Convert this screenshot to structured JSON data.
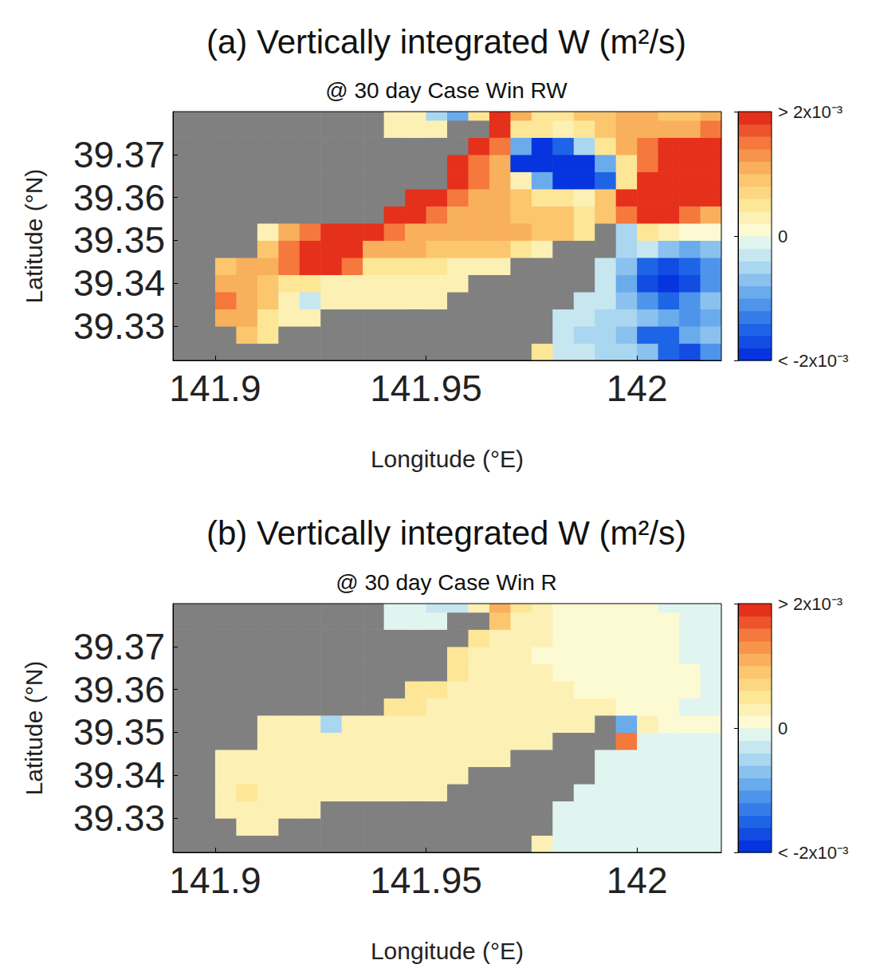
{
  "chart_data": [
    {
      "type": "heatmap",
      "title": "(a) Vertically integrated W (m²/s)",
      "subtitle": "@ 30 day Case Win RW",
      "x_label": "Longitude (°E)",
      "y_label": "Latitude (°N)",
      "xlim": [
        141.89,
        142.02
      ],
      "ylim": [
        39.322,
        39.38
      ],
      "xticks": [
        141.9,
        141.95,
        142
      ],
      "yticks": [
        39.33,
        39.34,
        39.35,
        39.36,
        39.37
      ],
      "x": [
        141.8925,
        141.8975,
        141.9025,
        141.9075,
        141.9125,
        141.9175,
        141.9225,
        141.9275,
        141.9325,
        141.9375,
        141.9425,
        141.9475,
        141.9525,
        141.9575,
        141.9625,
        141.9675,
        141.9725,
        141.9775,
        141.9825,
        141.9875,
        141.9925,
        141.9975,
        142.0025,
        142.0075,
        142.0125,
        142.0175
      ],
      "y": [
        39.324,
        39.328,
        39.332,
        39.336,
        39.34,
        39.344,
        39.348,
        39.352,
        39.356,
        39.36,
        39.364,
        39.368,
        39.372,
        39.376,
        39.38
      ],
      "cells": [
        [
          null,
          null,
          null,
          null,
          null,
          null,
          null,
          null,
          null,
          null,
          null,
          null,
          null,
          null,
          null,
          null,
          null,
          0.0005,
          -0.0003,
          -0.0003,
          -0.0005,
          -0.0005,
          -0.0008,
          -0.0015,
          -0.0018,
          -0.0012
        ],
        [
          null,
          null,
          null,
          0.0008,
          0.0005,
          null,
          null,
          null,
          null,
          null,
          null,
          null,
          null,
          null,
          null,
          null,
          null,
          null,
          -0.0003,
          -0.0005,
          -0.0005,
          -0.0008,
          -0.0015,
          -0.0015,
          -0.001,
          -0.0008
        ],
        [
          null,
          null,
          0.001,
          0.001,
          0.0005,
          0.0003,
          0.0002,
          null,
          null,
          null,
          null,
          null,
          null,
          null,
          null,
          null,
          null,
          null,
          -0.0003,
          -0.0003,
          -0.0005,
          -0.0005,
          -0.0008,
          -0.001,
          -0.0012,
          -0.001
        ],
        [
          null,
          null,
          0.0015,
          0.0012,
          0.0008,
          0.0003,
          -0.0003,
          0.0002,
          0.0003,
          0.0002,
          0.0002,
          0.0002,
          0.0003,
          null,
          null,
          null,
          null,
          null,
          null,
          -0.0003,
          -0.0003,
          -0.0008,
          -0.0012,
          -0.0015,
          -0.0012,
          -0.0008
        ],
        [
          null,
          null,
          0.0012,
          0.001,
          0.0008,
          0.0005,
          0.0005,
          0.0003,
          0.0002,
          0.0002,
          0.0002,
          0.0002,
          0.0002,
          0.0002,
          null,
          null,
          null,
          null,
          null,
          null,
          -0.0003,
          -0.001,
          -0.0018,
          -0.002,
          -0.0018,
          -0.0012
        ],
        [
          null,
          null,
          0.0008,
          0.001,
          0.001,
          0.0015,
          0.002,
          0.002,
          0.0015,
          0.0005,
          0.0005,
          0.0005,
          0.0005,
          0.0003,
          0.0002,
          0.0002,
          null,
          null,
          null,
          null,
          -0.0003,
          -0.0008,
          -0.0015,
          -0.0018,
          -0.0015,
          -0.0012
        ],
        [
          null,
          null,
          null,
          null,
          0.0008,
          0.0015,
          0.002,
          0.002,
          0.0018,
          0.0012,
          0.001,
          0.001,
          0.0008,
          0.0008,
          0.0008,
          0.0008,
          0.0005,
          0.0003,
          null,
          null,
          null,
          -0.0005,
          -0.0003,
          -0.0008,
          -0.001,
          -0.0008
        ],
        [
          null,
          null,
          null,
          null,
          0.0003,
          0.001,
          0.0015,
          0.002,
          0.002,
          0.0018,
          0.0015,
          0.0012,
          0.001,
          0.0012,
          0.0012,
          0.001,
          0.001,
          0.0008,
          0.0008,
          0.0005,
          null,
          -0.0005,
          0.0005,
          0.0002,
          0,
          0
        ],
        [
          null,
          null,
          null,
          null,
          null,
          null,
          null,
          null,
          null,
          null,
          0.002,
          0.0018,
          0.0015,
          0.0012,
          0.001,
          0.001,
          0.0008,
          0.0008,
          0.0008,
          0.0005,
          0.0008,
          0.0015,
          0.002,
          0.002,
          0.0015,
          0.0012
        ],
        [
          null,
          null,
          null,
          null,
          null,
          null,
          null,
          null,
          null,
          null,
          null,
          0.002,
          0.002,
          0.0015,
          0.0012,
          0.001,
          0.0008,
          0.0005,
          0.0005,
          0.0002,
          0.0008,
          0.002,
          0.002,
          0.002,
          0.002,
          0.0018
        ],
        [
          null,
          null,
          null,
          null,
          null,
          null,
          null,
          null,
          null,
          null,
          null,
          null,
          null,
          0.002,
          0.0015,
          0.001,
          0.0003,
          -0.001,
          -0.002,
          -0.002,
          -0.0015,
          0.0005,
          0.002,
          0.002,
          0.002,
          0.002
        ],
        [
          null,
          null,
          null,
          null,
          null,
          null,
          null,
          null,
          null,
          null,
          null,
          null,
          null,
          0.002,
          0.0015,
          0.001,
          -0.002,
          -0.002,
          -0.002,
          -0.002,
          -0.001,
          0.0005,
          0.0015,
          0.002,
          0.002,
          0.002
        ],
        [
          null,
          null,
          null,
          null,
          null,
          null,
          null,
          null,
          null,
          null,
          null,
          null,
          null,
          null,
          0.002,
          0.0015,
          -0.001,
          -0.002,
          -0.0015,
          -0.0005,
          0.0005,
          0.001,
          0.0015,
          0.0018,
          0.002,
          0.002
        ],
        [
          null,
          null,
          null,
          null,
          null,
          null,
          null,
          null,
          null,
          null,
          0.0002,
          0.0002,
          0.0002,
          null,
          null,
          0.002,
          0.0005,
          0.0005,
          0.0003,
          0.0005,
          0.0008,
          0.001,
          0.0012,
          0.0012,
          0.0012,
          0.0015
        ],
        [
          null,
          null,
          null,
          null,
          null,
          null,
          null,
          null,
          null,
          null,
          0.0003,
          0.0003,
          -0.0005,
          -0.001,
          0.0005,
          0.002,
          0.001,
          0.0005,
          0.0005,
          0.0008,
          0.0008,
          0.001,
          0.001,
          0.0008,
          0.0008,
          0.001
        ]
      ],
      "colorbar": {
        "range": [
          -0.002,
          0.002
        ],
        "ticks": [
          {
            "value": -0.002,
            "label": "< -2x10⁻³"
          },
          0,
          {
            "value": 0.002,
            "label": "> 2x10⁻³"
          }
        ]
      }
    },
    {
      "type": "heatmap",
      "title": "(b) Vertically integrated W (m²/s)",
      "subtitle": "@ 30 day Case Win R",
      "x_label": "Longitude (°E)",
      "y_label": "Latitude (°N)",
      "xlim": [
        141.89,
        142.02
      ],
      "ylim": [
        39.322,
        39.38
      ],
      "xticks": [
        141.9,
        141.95,
        142
      ],
      "yticks": [
        39.33,
        39.34,
        39.35,
        39.36,
        39.37
      ],
      "x": [
        141.8925,
        141.8975,
        141.9025,
        141.9075,
        141.9125,
        141.9175,
        141.9225,
        141.9275,
        141.9325,
        141.9375,
        141.9425,
        141.9475,
        141.9525,
        141.9575,
        141.9625,
        141.9675,
        141.9725,
        141.9775,
        141.9825,
        141.9875,
        141.9925,
        141.9975,
        142.0025,
        142.0075,
        142.0125,
        142.0175
      ],
      "y": [
        39.324,
        39.328,
        39.332,
        39.336,
        39.34,
        39.344,
        39.348,
        39.352,
        39.356,
        39.36,
        39.364,
        39.368,
        39.372,
        39.376,
        39.38
      ],
      "cells": [
        [
          null,
          null,
          null,
          null,
          null,
          null,
          null,
          null,
          null,
          null,
          null,
          null,
          null,
          null,
          null,
          null,
          null,
          0.0003,
          -0.0002,
          -0.0002,
          -0.0002,
          -0.0002,
          -0.0002,
          -0.0002,
          -0.0002,
          -0.0002
        ],
        [
          null,
          null,
          null,
          0.0003,
          0.0003,
          null,
          null,
          null,
          null,
          null,
          null,
          null,
          null,
          null,
          null,
          null,
          null,
          null,
          -0.0002,
          -0.0002,
          -0.0002,
          -0.0002,
          -0.0002,
          -0.0002,
          -0.0002,
          -0.0002
        ],
        [
          null,
          null,
          0.0003,
          0.0003,
          0.0003,
          0.0002,
          0.0002,
          null,
          null,
          null,
          null,
          null,
          null,
          null,
          null,
          null,
          null,
          null,
          -0.0002,
          -0.0002,
          -0.0002,
          -0.0002,
          -0.0002,
          -0.0002,
          -0.0002,
          -0.0002
        ],
        [
          null,
          null,
          0.0003,
          0.0004,
          0.0003,
          0.0002,
          0.0002,
          0.0002,
          0.0002,
          0.0002,
          0.0002,
          0.0002,
          0.0002,
          null,
          null,
          null,
          null,
          null,
          null,
          -0.0002,
          -0.0002,
          -0.0002,
          -0.0002,
          -0.0002,
          -0.0002,
          -0.0002
        ],
        [
          null,
          null,
          0.0003,
          0.0003,
          0.0002,
          0.0002,
          0.0002,
          0.0002,
          0.0002,
          0.0002,
          0.0002,
          0.0002,
          0.0002,
          0.0002,
          null,
          null,
          null,
          null,
          null,
          null,
          -0.0002,
          -0.0002,
          -0.0002,
          -0.0002,
          -0.0002,
          -0.0002
        ],
        [
          null,
          null,
          0.0002,
          0.0003,
          0.0003,
          0.0003,
          0.0003,
          0.0003,
          0.0002,
          0.0002,
          0.0002,
          0.0002,
          0.0002,
          0.0002,
          0.0002,
          0.0003,
          null,
          null,
          null,
          null,
          -0.0001,
          -0.0002,
          -0.0002,
          -0.0002,
          -0.0002,
          -0.0002
        ],
        [
          null,
          null,
          null,
          null,
          0.0003,
          0.0003,
          0.0003,
          0.0003,
          0.0003,
          0.0003,
          0.0002,
          0.0003,
          0.0003,
          0.0002,
          0.0002,
          0.0002,
          0.0002,
          0.0002,
          null,
          null,
          null,
          0.0015,
          -0.0001,
          -0.0002,
          -0.0002,
          -0.0002
        ],
        [
          null,
          null,
          null,
          null,
          0.0002,
          0.0003,
          0.0003,
          -0.0005,
          0.0003,
          0.0003,
          0.0003,
          0.0003,
          0.0003,
          0.0003,
          0.0002,
          0.0003,
          0.0002,
          0.0002,
          0.0002,
          0.0002,
          null,
          -0.001,
          0.0002,
          0,
          0,
          0
        ],
        [
          null,
          null,
          null,
          null,
          null,
          null,
          null,
          null,
          null,
          null,
          0.0005,
          0.0004,
          0.0003,
          0.0003,
          0.0002,
          0.0002,
          0.0002,
          0.0002,
          0.0002,
          0.0002,
          0.0002,
          0.0001,
          0,
          0,
          -0.0001,
          -0.0001
        ],
        [
          null,
          null,
          null,
          null,
          null,
          null,
          null,
          null,
          null,
          null,
          null,
          0.0005,
          0.0005,
          0.0003,
          0.0002,
          0.0002,
          0.0002,
          0.0002,
          0.0002,
          0.0001,
          0.0001,
          0.0001,
          0,
          0,
          0,
          -0.0001
        ],
        [
          null,
          null,
          null,
          null,
          null,
          null,
          null,
          null,
          null,
          null,
          null,
          null,
          null,
          0.0005,
          0.0003,
          0.0002,
          0.0002,
          0.0002,
          0.0001,
          0.0001,
          0.0001,
          0.0001,
          0,
          0,
          0,
          -0.0001
        ],
        [
          null,
          null,
          null,
          null,
          null,
          null,
          null,
          null,
          null,
          null,
          null,
          null,
          null,
          0.0006,
          0.0003,
          0.0002,
          0.0002,
          0.0001,
          0.0001,
          0.0001,
          0.0001,
          0.0001,
          0,
          0,
          -0.0001,
          -0.0001
        ],
        [
          null,
          null,
          null,
          null,
          null,
          null,
          null,
          null,
          null,
          null,
          null,
          null,
          null,
          null,
          0.0006,
          0.0003,
          0.0002,
          0.0002,
          0.0001,
          0.0001,
          0.0001,
          0.0001,
          0,
          0,
          -0.0001,
          -0.0001
        ],
        [
          null,
          null,
          null,
          null,
          null,
          null,
          null,
          null,
          null,
          null,
          -0.0001,
          -0.0001,
          -0.0001,
          null,
          null,
          0.0008,
          0.0003,
          0.0002,
          0.0001,
          0.0001,
          0.0001,
          0.0001,
          0,
          0,
          -0.0001,
          -0.0001
        ],
        [
          null,
          null,
          null,
          null,
          null,
          null,
          null,
          null,
          null,
          null,
          -0.0002,
          -0.0002,
          -0.0003,
          -0.0003,
          0.0002,
          0.001,
          0.0004,
          0.0002,
          0.0001,
          0.0001,
          0.0001,
          0,
          0,
          -0.0001,
          -0.0001,
          -0.0001
        ]
      ],
      "colorbar": {
        "range": [
          -0.002,
          0.002
        ],
        "ticks": [
          {
            "value": -0.002,
            "label": "< -2x10⁻³"
          },
          0,
          {
            "value": 0.002,
            "label": "> 2x10⁻³"
          }
        ]
      }
    }
  ]
}
